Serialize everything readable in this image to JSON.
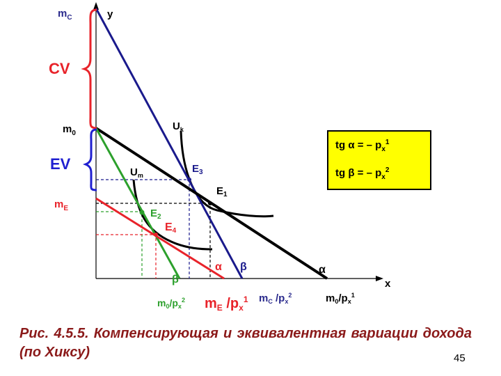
{
  "axes": {
    "y_label": "y",
    "x_label": "x"
  },
  "y_labels": {
    "mC": {
      "main": "m",
      "sub": "C"
    },
    "m0": {
      "main": "m",
      "sub": "0"
    },
    "mE": {
      "main": "m",
      "sub": "E"
    }
  },
  "braces": {
    "cv": "CV",
    "ev": "EV"
  },
  "curve_labels": {
    "Uk": {
      "main": "U",
      "sub": "k"
    },
    "Um": {
      "main": "U",
      "sub": "m"
    }
  },
  "points": {
    "E1": {
      "main": "E",
      "sub": "1"
    },
    "E2": {
      "main": "E",
      "sub": "2"
    },
    "E3": {
      "main": "E",
      "sub": "3"
    },
    "E4": {
      "main": "E",
      "sub": "4"
    }
  },
  "angles": {
    "alpha_red": "α",
    "beta_blue": "β",
    "beta_green": "β",
    "alpha_black": "α"
  },
  "x_labels": {
    "m0_px2": {
      "a": "m",
      "a_sub": "0",
      "b": "/p",
      "b_sub": "x",
      "b_sup": "2"
    },
    "mE_px1": {
      "a": "m",
      "a_sub": "E",
      "b": " /p",
      "b_sub": "x",
      "b_sup": "1"
    },
    "mC_px2": {
      "a": "m",
      "a_sub": "C",
      "b": " /p",
      "b_sub": "x",
      "b_sup": "2"
    },
    "m0_px1": {
      "a": "m",
      "a_sub": "0",
      "b": "/p",
      "b_sub": "x",
      "b_sup": "1"
    }
  },
  "info_box": {
    "line1": {
      "pre": "tg ",
      "greek": "α",
      "mid": " =  –  p",
      "sub": "x",
      "sup": "1"
    },
    "line2": {
      "pre": "tg ",
      "greek": "β",
      "mid": " = –  p",
      "sub": "x",
      "sup": "2"
    }
  },
  "caption": "Рис.   4.5.5.   Компенсирующая   и   эквивалентная вариации дохода (по Хиксу)",
  "page_number": "45",
  "colors": {
    "black_line": "#000000",
    "blue_line": "#1a1a8c",
    "red_line": "#e8232a",
    "green_line": "#2ca02c",
    "brace_red": "#e8232a",
    "brace_blue": "#1f1fd0",
    "label_navy": "#2a2a8c",
    "caption": "#8b1a1a",
    "box_fill": "#ffff00"
  }
}
